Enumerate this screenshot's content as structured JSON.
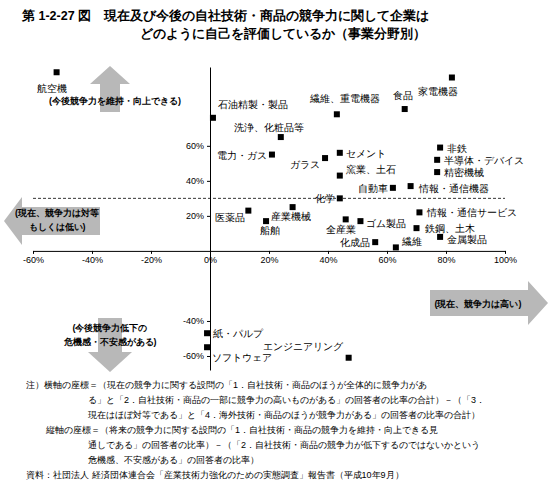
{
  "chart_data": {
    "type": "scatter",
    "title": [
      "第 1-2-27 図　現在及び今後の自社技術・商品の競争力に関して企業は",
      "どのように自己を評価しているか（事業分野別）"
    ],
    "labels": [
      "航空機",
      "家電機器",
      "石油精製・製品",
      "繊維、重電機器",
      "食品",
      "洗浄、化粧品等",
      "電力・ガス",
      "セメント",
      "ガラス",
      "窯業、土石",
      "非鉄",
      "半導体・デバイス",
      "精密機械",
      "自動車",
      "情報・通信機器",
      "化学",
      "医薬品",
      "産業機械",
      "船舶",
      "全産業",
      "ゴム製品",
      "情報・通信サービス",
      "鉄鋼、土木",
      "化成品",
      "繊維",
      "金属製品",
      "紙・パルプ",
      "エンジニアリング",
      "ソフトウェア"
    ],
    "x": [
      -52,
      82,
      1,
      43,
      66,
      24,
      21,
      44,
      39,
      44,
      78,
      77,
      77,
      62,
      68,
      44,
      13,
      28,
      19,
      46,
      51,
      71,
      70,
      56,
      63,
      78,
      -1,
      47,
      -1
    ],
    "values": [
      102,
      99,
      76,
      78,
      81,
      65,
      55,
      56,
      53,
      43,
      59,
      52,
      45,
      36,
      37,
      30,
      23,
      25,
      17,
      18,
      17,
      22,
      13,
      5,
      2,
      8,
      -47,
      -61,
      -55
    ],
    "color": "#000000",
    "marker": "square",
    "xlim": [
      -60,
      100
    ],
    "ylim": [
      -68,
      105
    ],
    "xticks": [
      {
        "value": -60,
        "label": "-60%"
      },
      {
        "value": -40,
        "label": "-40%"
      },
      {
        "value": -20,
        "label": "-20%"
      },
      {
        "value": 0,
        "label": "0%"
      },
      {
        "value": 20,
        "label": "20%"
      },
      {
        "value": 40,
        "label": "40%"
      },
      {
        "value": 60,
        "label": "60%"
      },
      {
        "value": 80,
        "label": "80%"
      },
      {
        "value": 100,
        "label": "100%"
      }
    ],
    "yticks": [
      {
        "value": 60,
        "label": "60%"
      },
      {
        "value": 40,
        "label": "40%"
      },
      {
        "value": 20,
        "label": "20%"
      },
      {
        "value": -40,
        "label": "-40%"
      },
      {
        "value": -60,
        "label": "-60%"
      }
    ],
    "grid": false,
    "reference_line": 30,
    "annotations": [
      [
        "(今後競争力を維持・向上できる)"
      ],
      [
        "(現在、競争力は対等",
        "もしくは低い)"
      ],
      [
        "(現在、競争力は高い)"
      ],
      [
        "(今後競争力低下の",
        "危機感・不安感がある)"
      ]
    ],
    "notes": [
      "注）横軸の座標＝（現在の競争力に関する設問の「1．自社技術・商品のほうが全体的に競争力があ",
      "る」と「2．自社技術・商品の一部に競争力の高いものがある」の回答者の比率の合計）－（「3．",
      "現在はほぼ対等である」と「4．海外技術・商品のほうが競争力がある」の回答者の比率の合計）",
      "縦軸の座標＝（将来の競争力に関する設問の「1．自社技術・商品の競争力を維持・向上できる見",
      "通しである」の回答者の比率）－（「2．自社技術・商品の競争力が低下するのではないかという",
      "危機感、不安感がある」の回答者の比率）",
      "資料：社団法人 経済団体連合会「産業技術力強化のための実態調査」報告書（平成10年9月）"
    ]
  }
}
